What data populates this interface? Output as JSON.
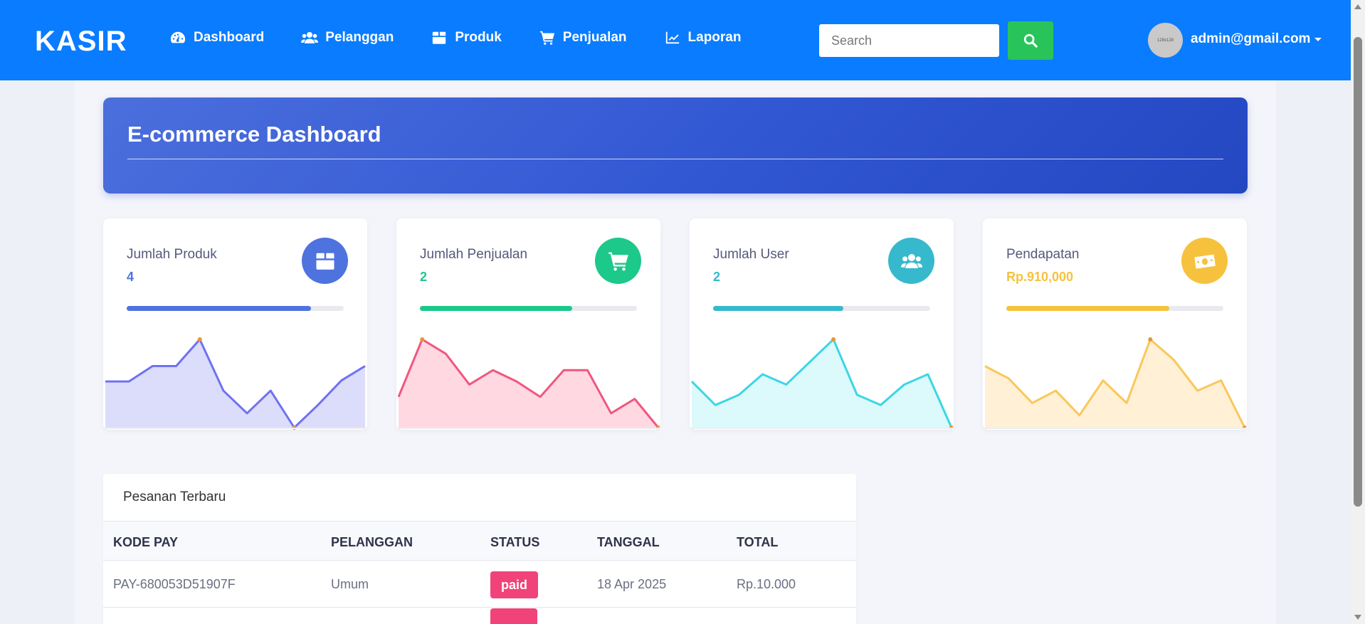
{
  "navbar": {
    "brand": "KASIR",
    "items": [
      {
        "label": "Dashboard",
        "icon": "gauge-icon"
      },
      {
        "label": "Pelanggan",
        "icon": "users-icon"
      },
      {
        "label": "Produk",
        "icon": "box-icon"
      },
      {
        "label": "Penjualan",
        "icon": "cart-icon"
      },
      {
        "label": "Laporan",
        "icon": "chart-line-icon"
      }
    ],
    "search_placeholder": "Search",
    "avatar_text": "128x128",
    "user_email": "admin@gmail.com"
  },
  "banner": {
    "title": "E-commerce Dashboard"
  },
  "cards": [
    {
      "label": "Jumlah Produk",
      "value": "4",
      "icon": "box-icon",
      "color": "#4e73df",
      "progress": 0.85,
      "chart_color": "#6f72f0",
      "chart_fill": "#dcdcfb"
    },
    {
      "label": "Jumlah Penjualan",
      "value": "2",
      "icon": "cart-icon",
      "color": "#1cc88a",
      "progress": 0.7,
      "chart_color": "#f0577f",
      "chart_fill": "#ffd8e2"
    },
    {
      "label": "Jumlah User",
      "value": "2",
      "icon": "users-icon",
      "color": "#36b9cc",
      "progress": 0.6,
      "chart_color": "#3cd6e4",
      "chart_fill": "#dcf9fb"
    },
    {
      "label": "Pendapatan",
      "value": "Rp.910,000",
      "icon": "money-icon",
      "color": "#f6c23e",
      "progress": 0.75,
      "chart_color": "#f9c85a",
      "chart_fill": "#fff0d6"
    }
  ],
  "sparklines": [
    [
      45,
      45,
      60,
      60,
      86,
      36,
      14,
      36,
      0,
      22,
      46,
      60
    ],
    [
      30,
      86,
      72,
      42,
      56,
      45,
      30,
      56,
      56,
      14,
      28,
      0
    ],
    [
      45,
      22,
      32,
      52,
      42,
      64,
      86,
      32,
      22,
      42,
      52,
      0
    ],
    [
      60,
      48,
      24,
      36,
      12,
      46,
      24,
      86,
      66,
      36,
      46,
      0
    ]
  ],
  "orders": {
    "title": "Pesanan Terbaru",
    "columns": [
      "KODE PAY",
      "PELANGGAN",
      "STATUS",
      "TANGGAL",
      "TOTAL"
    ],
    "rows": [
      {
        "kode": "PAY-680053D51907F",
        "pelanggan": "Umum",
        "status": "paid",
        "tanggal": "18 Apr 2025",
        "total": "Rp.10.000"
      },
      {
        "kode": "",
        "pelanggan": "",
        "status": "",
        "tanggal": "",
        "total": ""
      }
    ],
    "status_color": "#f0437a"
  }
}
